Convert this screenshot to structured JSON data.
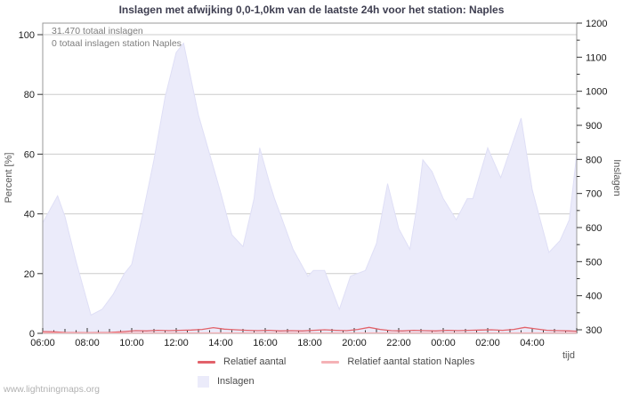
{
  "page": {
    "watermark": "www.lightningmaps.org"
  },
  "chart": {
    "title": "Inslagen met afwijking 0,0-1,0km van de laatste 24h voor het station: Naples",
    "annotations": {
      "total": "31.470 totaal inslagen",
      "station": "0 totaal inslagen station Naples"
    },
    "legend": [
      {
        "label": "Relatief aantal",
        "type": "line",
        "color": "#e2626a"
      },
      {
        "label": "Relatief aantal station Naples",
        "type": "line",
        "color": "#f5b2b6"
      },
      {
        "label": "Inslagen",
        "type": "area",
        "color": "#ebebfa"
      }
    ],
    "colors": {
      "grid": "#cccccc",
      "box": "#999999",
      "tick": "#333333",
      "tick_label": "#1a1a1a",
      "axis_title": "#555555",
      "area_fill": "#ebebfa",
      "area_edge": "#dfdff6",
      "line_red": "#e2626a",
      "line_pink": "#f5b2b6"
    }
  },
  "chart_data": {
    "type": "area",
    "title": "Inslagen met afwijking 0,0-1,0km van de laatste 24h voor het station: Naples",
    "x_label": "tijd",
    "y_left": {
      "label": "Percent  [%]",
      "min": 0,
      "max": 100,
      "ticks": [
        0,
        20,
        40,
        60,
        80,
        100
      ]
    },
    "y_right": {
      "label": "Inslagen",
      "min": 300,
      "max": 1200,
      "ticks": [
        300,
        400,
        500,
        600,
        700,
        800,
        900,
        1000,
        1100,
        1200
      ],
      "minor_step": 50
    },
    "x_ticks": [
      "06:00",
      "08:00",
      "10:00",
      "12:00",
      "14:00",
      "16:00",
      "18:00",
      "20:00",
      "22:00",
      "00:00",
      "02:00",
      "04:00"
    ],
    "x_tick_interval_minutes": 120,
    "x_minor_interval_minutes": 30,
    "grid": "horizontal-only",
    "legend_position": "bottom",
    "totals": {
      "inslagen_24h": 31470,
      "station_inslagen_24h": 0
    },
    "series": [
      {
        "name": "Inslagen",
        "type": "area",
        "axis": "right",
        "color": "#ebebfa",
        "points": [
          {
            "t": "06:00",
            "v": 614
          },
          {
            "t": "06:40",
            "v": 693
          },
          {
            "t": "07:00",
            "v": 632
          },
          {
            "t": "07:30",
            "v": 500
          },
          {
            "t": "08:10",
            "v": 343
          },
          {
            "t": "08:40",
            "v": 360
          },
          {
            "t": "09:10",
            "v": 404
          },
          {
            "t": "09:40",
            "v": 465
          },
          {
            "t": "10:00",
            "v": 492
          },
          {
            "t": "10:30",
            "v": 641
          },
          {
            "t": "11:00",
            "v": 799
          },
          {
            "t": "11:30",
            "v": 983
          },
          {
            "t": "12:00",
            "v": 1114
          },
          {
            "t": "12:20",
            "v": 1141
          },
          {
            "t": "13:00",
            "v": 930
          },
          {
            "t": "13:30",
            "v": 816
          },
          {
            "t": "14:00",
            "v": 702
          },
          {
            "t": "14:30",
            "v": 579
          },
          {
            "t": "15:00",
            "v": 544
          },
          {
            "t": "15:30",
            "v": 685
          },
          {
            "t": "15:45",
            "v": 834
          },
          {
            "t": "16:10",
            "v": 737
          },
          {
            "t": "16:25",
            "v": 685
          },
          {
            "t": "16:40",
            "v": 641
          },
          {
            "t": "17:15",
            "v": 536
          },
          {
            "t": "17:55",
            "v": 457
          },
          {
            "t": "18:10",
            "v": 474
          },
          {
            "t": "18:40",
            "v": 474
          },
          {
            "t": "19:20",
            "v": 360
          },
          {
            "t": "19:50",
            "v": 457
          },
          {
            "t": "20:30",
            "v": 474
          },
          {
            "t": "21:00",
            "v": 553
          },
          {
            "t": "21:30",
            "v": 729
          },
          {
            "t": "22:00",
            "v": 597
          },
          {
            "t": "22:30",
            "v": 536
          },
          {
            "t": "22:50",
            "v": 667
          },
          {
            "t": "23:05",
            "v": 799
          },
          {
            "t": "23:30",
            "v": 764
          },
          {
            "t": "00:00",
            "v": 685
          },
          {
            "t": "00:35",
            "v": 623
          },
          {
            "t": "01:05",
            "v": 685
          },
          {
            "t": "01:20",
            "v": 685
          },
          {
            "t": "02:00",
            "v": 834
          },
          {
            "t": "02:35",
            "v": 746
          },
          {
            "t": "03:30",
            "v": 921
          },
          {
            "t": "04:00",
            "v": 711
          },
          {
            "t": "04:45",
            "v": 527
          },
          {
            "t": "05:15",
            "v": 562
          },
          {
            "t": "05:40",
            "v": 623
          },
          {
            "t": "06:00",
            "v": 816
          }
        ]
      },
      {
        "name": "Relatief aantal",
        "type": "line",
        "axis": "left",
        "color": "#e2626a",
        "points": [
          {
            "t": "06:00",
            "v": 0.6
          },
          {
            "t": "06:30",
            "v": 0.5
          },
          {
            "t": "07:00",
            "v": 0.3
          },
          {
            "t": "08:00",
            "v": 0.2
          },
          {
            "t": "09:00",
            "v": 0.3
          },
          {
            "t": "09:40",
            "v": 0.6
          },
          {
            "t": "10:10",
            "v": 0.9
          },
          {
            "t": "10:40",
            "v": 0.8
          },
          {
            "t": "11:10",
            "v": 1.0
          },
          {
            "t": "11:40",
            "v": 0.9
          },
          {
            "t": "12:10",
            "v": 1.0
          },
          {
            "t": "12:40",
            "v": 1.1
          },
          {
            "t": "13:10",
            "v": 1.3
          },
          {
            "t": "13:40",
            "v": 1.9
          },
          {
            "t": "14:10",
            "v": 1.4
          },
          {
            "t": "14:40",
            "v": 1.2
          },
          {
            "t": "15:10",
            "v": 1.0
          },
          {
            "t": "15:40",
            "v": 0.9
          },
          {
            "t": "16:10",
            "v": 1.0
          },
          {
            "t": "16:40",
            "v": 0.8
          },
          {
            "t": "17:10",
            "v": 0.9
          },
          {
            "t": "17:40",
            "v": 0.8
          },
          {
            "t": "18:10",
            "v": 1.0
          },
          {
            "t": "18:40",
            "v": 1.2
          },
          {
            "t": "19:10",
            "v": 1.0
          },
          {
            "t": "19:40",
            "v": 0.9
          },
          {
            "t": "20:10",
            "v": 1.3
          },
          {
            "t": "20:40",
            "v": 2.0
          },
          {
            "t": "21:10",
            "v": 1.3
          },
          {
            "t": "21:40",
            "v": 0.9
          },
          {
            "t": "22:10",
            "v": 0.8
          },
          {
            "t": "22:40",
            "v": 1.0
          },
          {
            "t": "23:10",
            "v": 0.9
          },
          {
            "t": "23:40",
            "v": 0.8
          },
          {
            "t": "00:10",
            "v": 1.0
          },
          {
            "t": "00:40",
            "v": 0.9
          },
          {
            "t": "01:10",
            "v": 1.0
          },
          {
            "t": "01:40",
            "v": 1.1
          },
          {
            "t": "02:10",
            "v": 1.2
          },
          {
            "t": "02:40",
            "v": 1.0
          },
          {
            "t": "03:10",
            "v": 1.3
          },
          {
            "t": "03:40",
            "v": 2.0
          },
          {
            "t": "04:10",
            "v": 1.5
          },
          {
            "t": "04:40",
            "v": 1.0
          },
          {
            "t": "05:10",
            "v": 0.9
          },
          {
            "t": "05:40",
            "v": 0.8
          },
          {
            "t": "06:00",
            "v": 0.7
          }
        ]
      },
      {
        "name": "Relatief aantal station Naples",
        "type": "line",
        "axis": "left",
        "color": "#f5b2b6",
        "points": [
          {
            "t": "06:00",
            "v": 0
          },
          {
            "t": "06:00",
            "v": 0
          }
        ]
      }
    ]
  }
}
